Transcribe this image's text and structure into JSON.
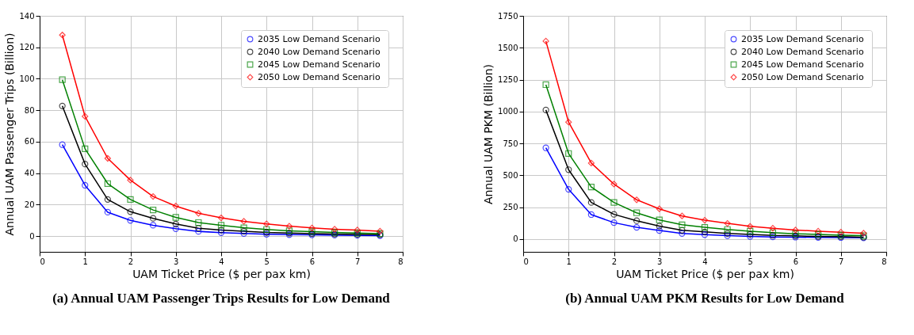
{
  "chart_data": [
    {
      "type": "line",
      "title": "(a) Annual UAM Passenger Trips Results for Low Demand",
      "xlabel": "UAM Ticket Price ($ per pax km)",
      "ylabel": "Annual UAM Passenger Trips (Billion)",
      "x": [
        0.5,
        1,
        1.5,
        2,
        2.5,
        3,
        3.5,
        4,
        4.5,
        5,
        5.5,
        6,
        6.5,
        7,
        7.5
      ],
      "series": [
        {
          "name": "2035 Low Demand Scenario",
          "color": "#0000ff",
          "marker": "circle",
          "values": [
            58.1,
            32.3,
            15.2,
            10,
            6.9,
            4.7,
            3.0,
            2.2,
            1.7,
            1.2,
            0.9,
            0.8,
            0.6,
            0.5,
            0.3
          ]
        },
        {
          "name": "2040 Low  Demand Scenario",
          "color": "#000000",
          "marker": "circle",
          "values": [
            82.7,
            45.8,
            23.3,
            15.5,
            11.3,
            7.7,
            5.0,
            3.9,
            3.1,
            2.3,
            1.9,
            1.6,
            1.3,
            1.1,
            0.9
          ]
        },
        {
          "name": "2045 Low  Demand Scenario",
          "color": "#008000",
          "marker": "square",
          "values": [
            99.4,
            55.5,
            33.4,
            23.3,
            16.6,
            11.9,
            8.6,
            6.9,
            5.3,
            4.2,
            3.4,
            2.8,
            2.3,
            1.9,
            1.6
          ]
        },
        {
          "name": "2050 Low  Demand Scenario",
          "color": "#ff0000",
          "marker": "diamond",
          "values": [
            127.8,
            76.1,
            49.4,
            35.6,
            25.2,
            19.1,
            14.5,
            11.6,
            9.4,
            7.8,
            6.3,
            5.2,
            4.4,
            3.9,
            3.1
          ]
        }
      ],
      "xlim": [
        0,
        8
      ],
      "xticks": [
        0,
        1,
        2,
        3,
        4,
        5,
        6,
        7,
        8
      ],
      "ylim": [
        -10,
        140
      ],
      "yticks": [
        0,
        20,
        40,
        60,
        80,
        100,
        120,
        140
      ],
      "grid": true,
      "legend": "top right",
      "line_style": "solid"
    },
    {
      "type": "line",
      "title": "(b) Annual UAM PKM Results for Low Demand",
      "xlabel": "UAM Ticket Price ($ per pax km)",
      "ylabel": "Annual UAM PKM (Billion)",
      "x": [
        0.5,
        1,
        1.5,
        2,
        2.5,
        3,
        3.5,
        4,
        4.5,
        5,
        5.5,
        6,
        6.5,
        7,
        7.5
      ],
      "series": [
        {
          "name": "2035 Low Demand Scenario",
          "color": "#0000ff",
          "marker": "circle",
          "values": [
            715,
            390,
            192,
            129,
            92,
            67,
            44,
            35,
            27,
            21,
            17,
            15,
            13,
            12,
            10
          ]
        },
        {
          "name": "2040 Low  Demand Scenario",
          "color": "#000000",
          "marker": "circle",
          "values": [
            1012,
            544,
            287,
            194,
            144,
            102,
            69,
            56,
            44,
            37,
            29,
            25,
            21,
            19,
            15
          ]
        },
        {
          "name": "2045 Low  Demand Scenario",
          "color": "#008000",
          "marker": "square",
          "values": [
            1210,
            671,
            408,
            287,
            206,
            150,
            112,
            92,
            75,
            62,
            50,
            42,
            37,
            31,
            27
          ]
        },
        {
          "name": "2050 Low  Demand Scenario",
          "color": "#ff0000",
          "marker": "diamond",
          "values": [
            1552,
            917,
            596,
            431,
            308,
            237,
            181,
            148,
            123,
            100,
            85,
            71,
            62,
            54,
            46
          ]
        }
      ],
      "xlim": [
        0,
        8
      ],
      "xticks": [
        0,
        1,
        2,
        3,
        4,
        5,
        6,
        7,
        8
      ],
      "ylim": [
        -100,
        1750
      ],
      "yticks": [
        0,
        250,
        500,
        750,
        1000,
        1250,
        1500,
        1750
      ],
      "grid": true,
      "legend": "top right",
      "line_style": "solid"
    }
  ]
}
